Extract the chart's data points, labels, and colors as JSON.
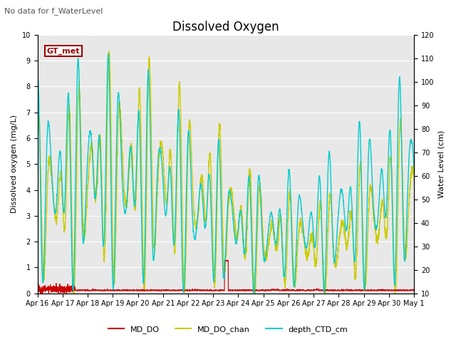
{
  "title": "Dissolved Oxygen",
  "subtitle": "No data for f_WaterLevel",
  "ylabel_left": "Dissolved oxygen (mg/L)",
  "ylabel_right": "Water Level (cm)",
  "ylim_left": [
    0.0,
    10.0
  ],
  "ylim_right": [
    10,
    120
  ],
  "yticks_left": [
    0.0,
    1.0,
    2.0,
    3.0,
    4.0,
    5.0,
    6.0,
    7.0,
    8.0,
    9.0,
    10.0
  ],
  "yticks_right": [
    10,
    20,
    30,
    40,
    50,
    60,
    70,
    80,
    90,
    100,
    110,
    120
  ],
  "plot_bg_color": "#e8e8e8",
  "fig_bg_color": "#ffffff",
  "legend_label_box": "GT_met",
  "legend_box_facecolor": "#ffffff",
  "legend_box_edgecolor": "#990000",
  "legend_box_textcolor": "#990000",
  "line_colors": {
    "MD_DO": "#cc0000",
    "MD_DO_chan": "#cccc00",
    "depth_CTD_cm": "#00cccc"
  },
  "line_widths": {
    "MD_DO": 0.8,
    "MD_DO_chan": 1.0,
    "depth_CTD_cm": 1.0
  },
  "xtick_labels": [
    "Apr 16",
    "Apr 17",
    "Apr 18",
    "Apr 19",
    "Apr 20",
    "Apr 21",
    "Apr 22",
    "Apr 23",
    "Apr 24",
    "Apr 25",
    "Apr 26",
    "Apr 27",
    "Apr 28",
    "Apr 29",
    "Apr 30",
    "May 1"
  ],
  "num_days": 15,
  "figsize": [
    6.4,
    4.8
  ],
  "dpi": 100,
  "title_fontsize": 12,
  "subtitle_fontsize": 8,
  "axis_label_fontsize": 8,
  "tick_fontsize": 7,
  "legend_fontsize": 8
}
